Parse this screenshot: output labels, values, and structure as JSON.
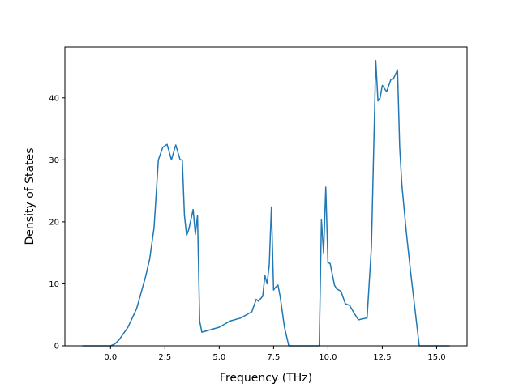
{
  "chart_data": {
    "type": "line",
    "title": "",
    "xlabel": "Frequency (THz)",
    "ylabel": "Density of States",
    "xlim": [
      -2.1,
      16.4
    ],
    "ylim": [
      0,
      48.2
    ],
    "xticks": [
      0.0,
      2.5,
      5.0,
      7.5,
      10.0,
      12.5,
      15.0
    ],
    "xtick_labels": [
      "0.0",
      "2.5",
      "5.0",
      "7.5",
      "10.0",
      "12.5",
      "15.0"
    ],
    "yticks": [
      0,
      10,
      20,
      30,
      40
    ],
    "ytick_labels": [
      "0",
      "10",
      "20",
      "30",
      "40"
    ],
    "grid": false,
    "line_color": "#1f77b4",
    "series": [
      {
        "x": [
          -1.3,
          0.0,
          0.2,
          0.4,
          0.6,
          0.8,
          1.0,
          1.2,
          1.4,
          1.6,
          1.8,
          2.0,
          2.2,
          2.4,
          2.6,
          2.8,
          3.0,
          3.2,
          3.3,
          3.4,
          3.5,
          3.6,
          3.8,
          3.9,
          4.0,
          4.1,
          4.2,
          4.3,
          4.5,
          5.0,
          5.5,
          6.0,
          6.5,
          6.7,
          6.8,
          7.0,
          7.1,
          7.2,
          7.3,
          7.4,
          7.5,
          7.6,
          7.7,
          7.8,
          7.9,
          8.0,
          8.2,
          8.4,
          9.6,
          9.7,
          9.8,
          9.9,
          10.0,
          10.1,
          10.3,
          10.4,
          10.6,
          10.8,
          11.0,
          11.2,
          11.4,
          11.8,
          12.0,
          12.2,
          12.3,
          12.4,
          12.5,
          12.7,
          12.9,
          13.0,
          13.2,
          13.3,
          13.4,
          13.6,
          13.8,
          14.0,
          14.2,
          14.3,
          14.6,
          15.6
        ],
        "y": [
          0,
          0,
          0.3,
          1,
          2,
          3,
          4.5,
          6,
          8.5,
          11,
          14,
          19,
          30,
          32,
          32.5,
          30,
          32.4,
          30,
          30,
          21,
          17.8,
          18.8,
          22,
          18,
          21,
          4,
          2.2,
          2.3,
          2.5,
          3,
          4,
          4.5,
          5.5,
          7.5,
          7.2,
          8,
          11.3,
          10,
          13,
          22.4,
          9,
          9.5,
          9.8,
          8,
          5.5,
          3,
          0,
          0,
          0,
          20.3,
          15,
          25.6,
          13.4,
          13.3,
          9.8,
          9.2,
          8.8,
          6.8,
          6.5,
          5.3,
          4.2,
          4.5,
          16,
          46,
          39.5,
          40,
          42,
          41,
          43,
          43,
          44.5,
          32,
          26,
          18.5,
          12,
          6,
          0,
          0,
          0,
          0
        ]
      }
    ]
  }
}
